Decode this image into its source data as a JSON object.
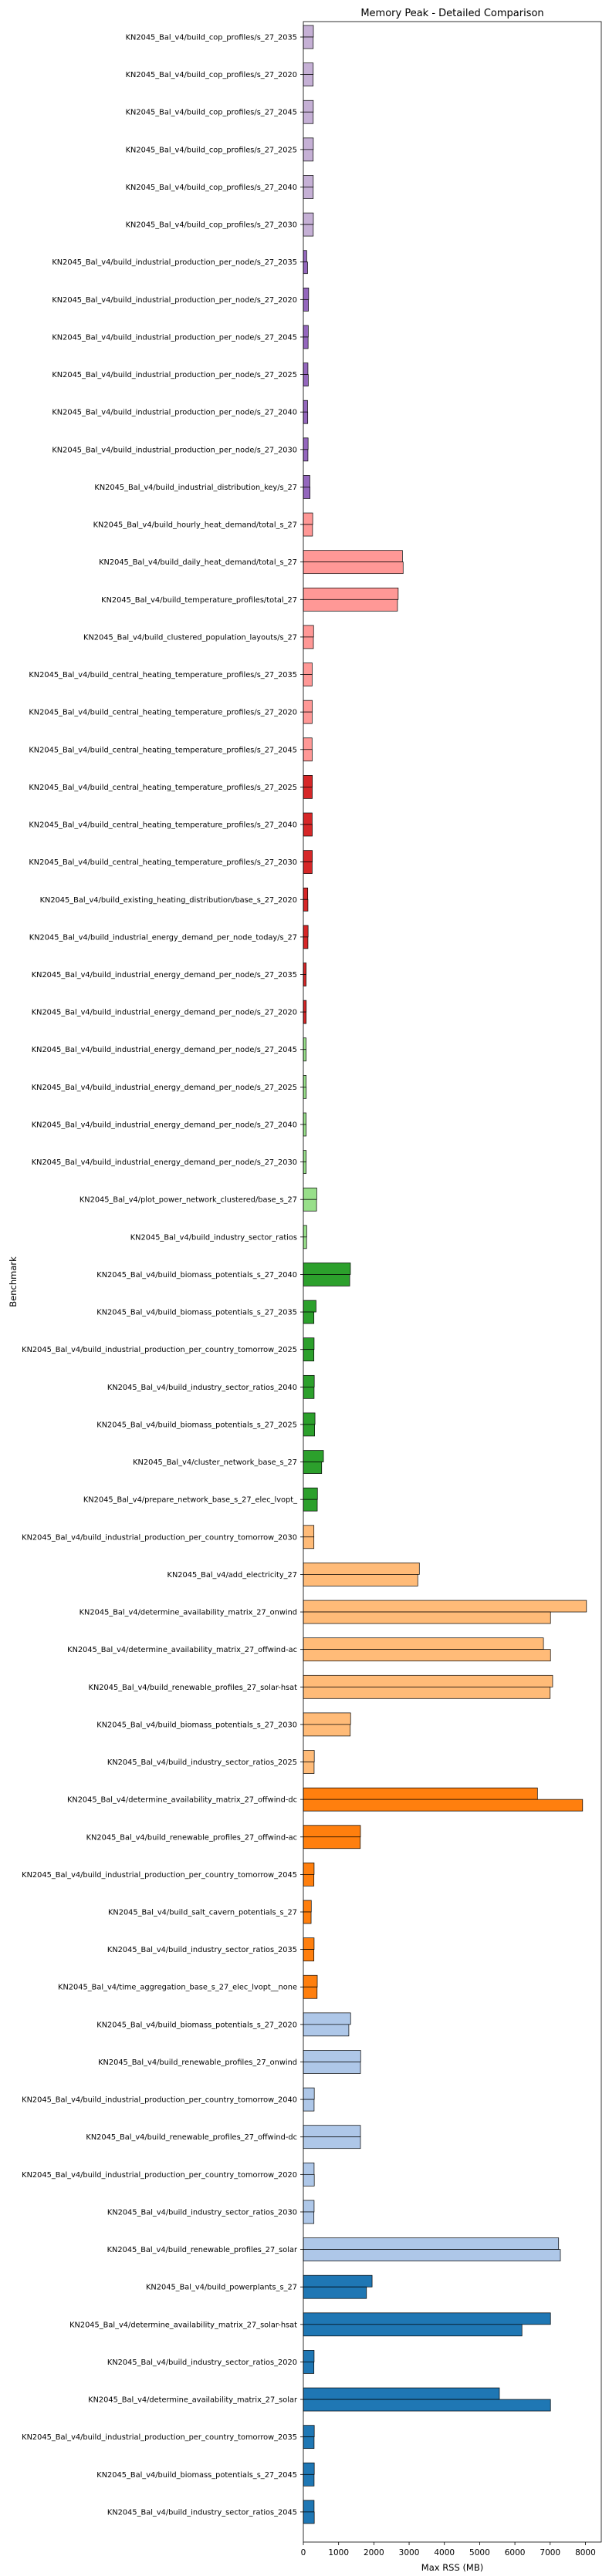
{
  "chart_data": {
    "type": "bar",
    "title": "Memory Peak - Detailed Comparison",
    "xlabel": "Max RSS (MB)",
    "ylabel": "Benchmark",
    "xlim": [
      0,
      8450
    ],
    "xticks": [
      0,
      1000,
      2000,
      3000,
      4000,
      5000,
      6000,
      7000,
      8000
    ],
    "grid": false,
    "categories": [
      "KN2045_Bal_v4/build_cop_profiles/s_27_2035",
      "KN2045_Bal_v4/build_cop_profiles/s_27_2020",
      "KN2045_Bal_v4/build_cop_profiles/s_27_2045",
      "KN2045_Bal_v4/build_cop_profiles/s_27_2025",
      "KN2045_Bal_v4/build_cop_profiles/s_27_2040",
      "KN2045_Bal_v4/build_cop_profiles/s_27_2030",
      "KN2045_Bal_v4/build_industrial_production_per_node/s_27_2035",
      "KN2045_Bal_v4/build_industrial_production_per_node/s_27_2020",
      "KN2045_Bal_v4/build_industrial_production_per_node/s_27_2045",
      "KN2045_Bal_v4/build_industrial_production_per_node/s_27_2025",
      "KN2045_Bal_v4/build_industrial_production_per_node/s_27_2040",
      "KN2045_Bal_v4/build_industrial_production_per_node/s_27_2030",
      "KN2045_Bal_v4/build_industrial_distribution_key/s_27",
      "KN2045_Bal_v4/build_hourly_heat_demand/total_s_27",
      "KN2045_Bal_v4/build_daily_heat_demand/total_s_27",
      "KN2045_Bal_v4/build_temperature_profiles/total_27",
      "KN2045_Bal_v4/build_clustered_population_layouts/s_27",
      "KN2045_Bal_v4/build_central_heating_temperature_profiles/s_27_2035",
      "KN2045_Bal_v4/build_central_heating_temperature_profiles/s_27_2020",
      "KN2045_Bal_v4/build_central_heating_temperature_profiles/s_27_2045",
      "KN2045_Bal_v4/build_central_heating_temperature_profiles/s_27_2025",
      "KN2045_Bal_v4/build_central_heating_temperature_profiles/s_27_2040",
      "KN2045_Bal_v4/build_central_heating_temperature_profiles/s_27_2030",
      "KN2045_Bal_v4/build_existing_heating_distribution/base_s_27_2020",
      "KN2045_Bal_v4/build_industrial_energy_demand_per_node_today/s_27",
      "KN2045_Bal_v4/build_industrial_energy_demand_per_node/s_27_2035",
      "KN2045_Bal_v4/build_industrial_energy_demand_per_node/s_27_2020",
      "KN2045_Bal_v4/build_industrial_energy_demand_per_node/s_27_2045",
      "KN2045_Bal_v4/build_industrial_energy_demand_per_node/s_27_2025",
      "KN2045_Bal_v4/build_industrial_energy_demand_per_node/s_27_2040",
      "KN2045_Bal_v4/build_industrial_energy_demand_per_node/s_27_2030",
      "KN2045_Bal_v4/plot_power_network_clustered/base_s_27",
      "KN2045_Bal_v4/build_industry_sector_ratios",
      "KN2045_Bal_v4/build_biomass_potentials_s_27_2040",
      "KN2045_Bal_v4/build_biomass_potentials_s_27_2035",
      "KN2045_Bal_v4/build_industrial_production_per_country_tomorrow_2025",
      "KN2045_Bal_v4/build_industry_sector_ratios_2040",
      "KN2045_Bal_v4/build_biomass_potentials_s_27_2025",
      "KN2045_Bal_v4/cluster_network_base_s_27",
      "KN2045_Bal_v4/prepare_network_base_s_27_elec_lvopt_",
      "KN2045_Bal_v4/build_industrial_production_per_country_tomorrow_2030",
      "KN2045_Bal_v4/add_electricity_27",
      "KN2045_Bal_v4/determine_availability_matrix_27_onwind",
      "KN2045_Bal_v4/determine_availability_matrix_27_offwind-ac",
      "KN2045_Bal_v4/build_renewable_profiles_27_solar-hsat",
      "KN2045_Bal_v4/build_biomass_potentials_s_27_2030",
      "KN2045_Bal_v4/build_industry_sector_ratios_2025",
      "KN2045_Bal_v4/determine_availability_matrix_27_offwind-dc",
      "KN2045_Bal_v4/build_renewable_profiles_27_offwind-ac",
      "KN2045_Bal_v4/build_industrial_production_per_country_tomorrow_2045",
      "KN2045_Bal_v4/build_salt_cavern_potentials_s_27",
      "KN2045_Bal_v4/build_industry_sector_ratios_2035",
      "KN2045_Bal_v4/time_aggregation_base_s_27_elec_lvopt__none",
      "KN2045_Bal_v4/build_biomass_potentials_s_27_2020",
      "KN2045_Bal_v4/build_renewable_profiles_27_onwind",
      "KN2045_Bal_v4/build_industrial_production_per_country_tomorrow_2040",
      "KN2045_Bal_v4/build_renewable_profiles_27_offwind-dc",
      "KN2045_Bal_v4/build_industrial_production_per_country_tomorrow_2020",
      "KN2045_Bal_v4/build_industry_sector_ratios_2030",
      "KN2045_Bal_v4/build_renewable_profiles_27_solar",
      "KN2045_Bal_v4/build_powerplants_s_27",
      "KN2045_Bal_v4/determine_availability_matrix_27_solar-hsat",
      "KN2045_Bal_v4/build_industry_sector_ratios_2020",
      "KN2045_Bal_v4/determine_availability_matrix_27_solar",
      "KN2045_Bal_v4/build_industrial_production_per_country_tomorrow_2035",
      "KN2045_Bal_v4/build_biomass_potentials_s_27_2045",
      "KN2045_Bal_v4/build_industry_sector_ratios_2045"
    ],
    "colors": [
      "#c5b0d5",
      "#c5b0d5",
      "#c5b0d5",
      "#c5b0d5",
      "#c5b0d5",
      "#c5b0d5",
      "#9467bd",
      "#9467bd",
      "#9467bd",
      "#9467bd",
      "#9467bd",
      "#9467bd",
      "#9467bd",
      "#ff9896",
      "#ff9896",
      "#ff9896",
      "#ff9896",
      "#ff9896",
      "#ff9896",
      "#ff9896",
      "#d62728",
      "#d62728",
      "#d62728",
      "#d62728",
      "#d62728",
      "#d62728",
      "#d62728",
      "#98df8a",
      "#98df8a",
      "#98df8a",
      "#98df8a",
      "#98df8a",
      "#98df8a",
      "#2ca02c",
      "#2ca02c",
      "#2ca02c",
      "#2ca02c",
      "#2ca02c",
      "#2ca02c",
      "#2ca02c",
      "#ffbb78",
      "#ffbb78",
      "#ffbb78",
      "#ffbb78",
      "#ffbb78",
      "#ffbb78",
      "#ffbb78",
      "#ff7f0e",
      "#ff7f0e",
      "#ff7f0e",
      "#ff7f0e",
      "#ff7f0e",
      "#ff7f0e",
      "#aec7e8",
      "#aec7e8",
      "#aec7e8",
      "#aec7e8",
      "#aec7e8",
      "#aec7e8",
      "#aec7e8",
      "#1f77b4",
      "#1f77b4",
      "#1f77b4",
      "#1f77b4",
      "#1f77b4",
      "#1f77b4",
      "#1f77b4"
    ],
    "series": [
      {
        "values": [
          285,
          280,
          282,
          283,
          281,
          284,
          95,
          150,
          140,
          130,
          120,
          135,
          185,
          265,
          2810,
          2690,
          290,
          250,
          252,
          247,
          255,
          250,
          254,
          125,
          135,
          80,
          82,
          78,
          80,
          79,
          81,
          380,
          95,
          1335,
          360,
          305,
          310,
          330,
          570,
          400,
          300,
          3290,
          8030,
          6810,
          7070,
          1340,
          310,
          6640,
          1620,
          305,
          225,
          305,
          395,
          1340,
          1625,
          310,
          1620,
          305,
          305,
          7240,
          1950,
          7010,
          305,
          5560,
          310,
          310,
          305
        ]
      },
      {
        "values": [
          280,
          278,
          280,
          279,
          280,
          281,
          120,
          145,
          135,
          140,
          125,
          130,
          190,
          260,
          2830,
          2670,
          285,
          248,
          249,
          251,
          252,
          253,
          250,
          130,
          130,
          78,
          80,
          80,
          82,
          81,
          79,
          375,
          92,
          1315,
          300,
          300,
          305,
          320,
          520,
          395,
          300,
          3245,
          7010,
          7010,
          7000,
          1330,
          305,
          7920,
          1615,
          300,
          220,
          300,
          390,
          1290,
          1620,
          305,
          1620,
          310,
          300,
          7290,
          1790,
          6200,
          300,
          7010,
          305,
          305,
          310
        ]
      }
    ]
  }
}
